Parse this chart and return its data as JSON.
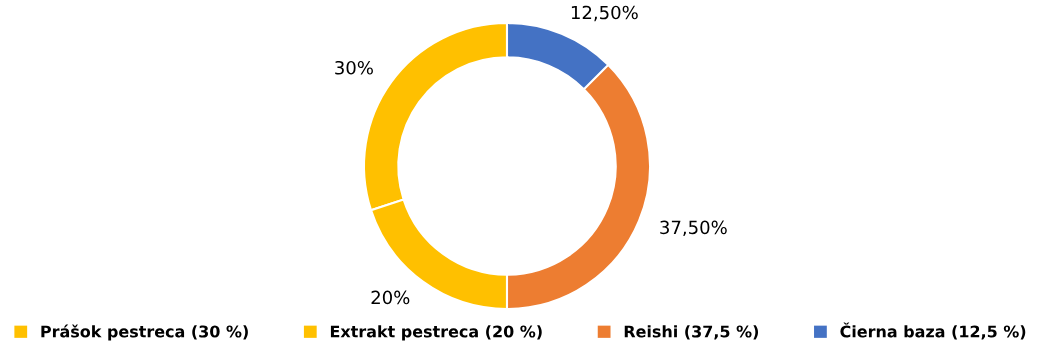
{
  "chart_data": {
    "type": "donut",
    "categories": [
      "Prášok pestreca (30 %)",
      "Extrakt pestreca (20 %)",
      "Reishi (37,5 %)",
      "Čierna baza (12,5 %)"
    ],
    "values": [
      30,
      20,
      37.5,
      12.5
    ],
    "colors": [
      "#ffc000",
      "#ffc000",
      "#ed7d31",
      "#4472c4"
    ],
    "value_labels": [
      "30%",
      "20%",
      "37,50%",
      "12,50%"
    ],
    "legend": "bottom"
  }
}
